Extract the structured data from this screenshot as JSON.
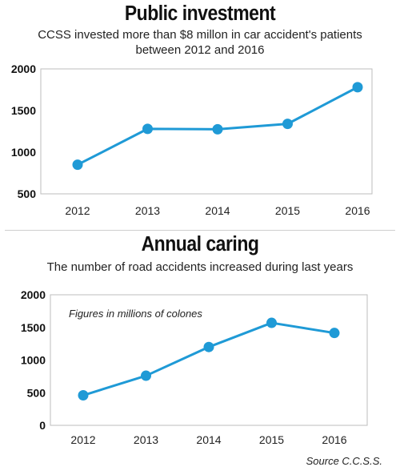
{
  "chart_data": [
    {
      "type": "line",
      "title": "Public investment",
      "subtitle_lines": [
        "CCSS invested more than $8 millon in car accident's patients",
        "between 2012 and 2016"
      ],
      "categories": [
        "2012",
        "2013",
        "2014",
        "2015",
        "2016"
      ],
      "values": [
        850,
        1280,
        1275,
        1340,
        1780
      ],
      "ylim": [
        500,
        2000
      ],
      "yticks": [
        "2000",
        "1500",
        "1000",
        "500"
      ],
      "grid": false,
      "color": "#1f9ad6"
    },
    {
      "type": "line",
      "title": "Annual caring",
      "subtitle_lines": [
        "The number of road accidents increased during last years"
      ],
      "note": "Figures in millions of colones",
      "categories": [
        "2012",
        "2013",
        "2014",
        "2015",
        "2016"
      ],
      "values": [
        460,
        760,
        1200,
        1570,
        1415
      ],
      "ylim": [
        0,
        2000
      ],
      "yticks": [
        "2000",
        "1500",
        "1000",
        "500",
        "0"
      ],
      "grid": false,
      "color": "#1f9ad6"
    }
  ],
  "source": "Source C.C.S.S."
}
